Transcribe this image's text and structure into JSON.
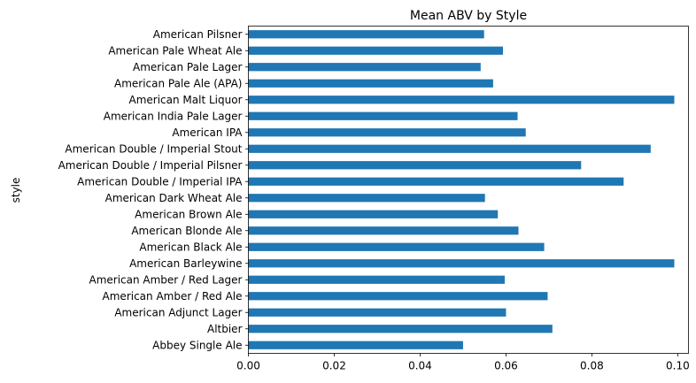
{
  "chart_data": {
    "type": "bar",
    "orientation": "horizontal",
    "title": "Mean ABV by Style",
    "xlabel": "",
    "ylabel": "style",
    "xlim": [
      0,
      0.1025
    ],
    "xticks": [
      "0.00",
      "0.02",
      "0.04",
      "0.06",
      "0.08",
      "0.10"
    ],
    "color": "#1f77b4",
    "grid": false,
    "categories": [
      "Abbey Single Ale",
      "Altbier",
      "American Adjunct Lager",
      "American Amber / Red Ale",
      "American Amber / Red Lager",
      "American Barleywine",
      "American Black Ale",
      "American Blonde Ale",
      "American Brown Ale",
      "American Dark Wheat Ale",
      "American Double / Imperial IPA",
      "American Double / Imperial Pilsner",
      "American Double / Imperial Stout",
      "American IPA",
      "American India Pale Lager",
      "American Malt Liquor",
      "American Pale Ale (APA)",
      "American Pale Lager",
      "American Pale Wheat Ale",
      "American Pilsner"
    ],
    "values": [
      0.05,
      0.0708,
      0.06,
      0.0697,
      0.0597,
      0.0992,
      0.0689,
      0.0629,
      0.0581,
      0.0551,
      0.0874,
      0.0775,
      0.0937,
      0.0646,
      0.0627,
      0.0992,
      0.057,
      0.0541,
      0.0593,
      0.0549
    ]
  }
}
